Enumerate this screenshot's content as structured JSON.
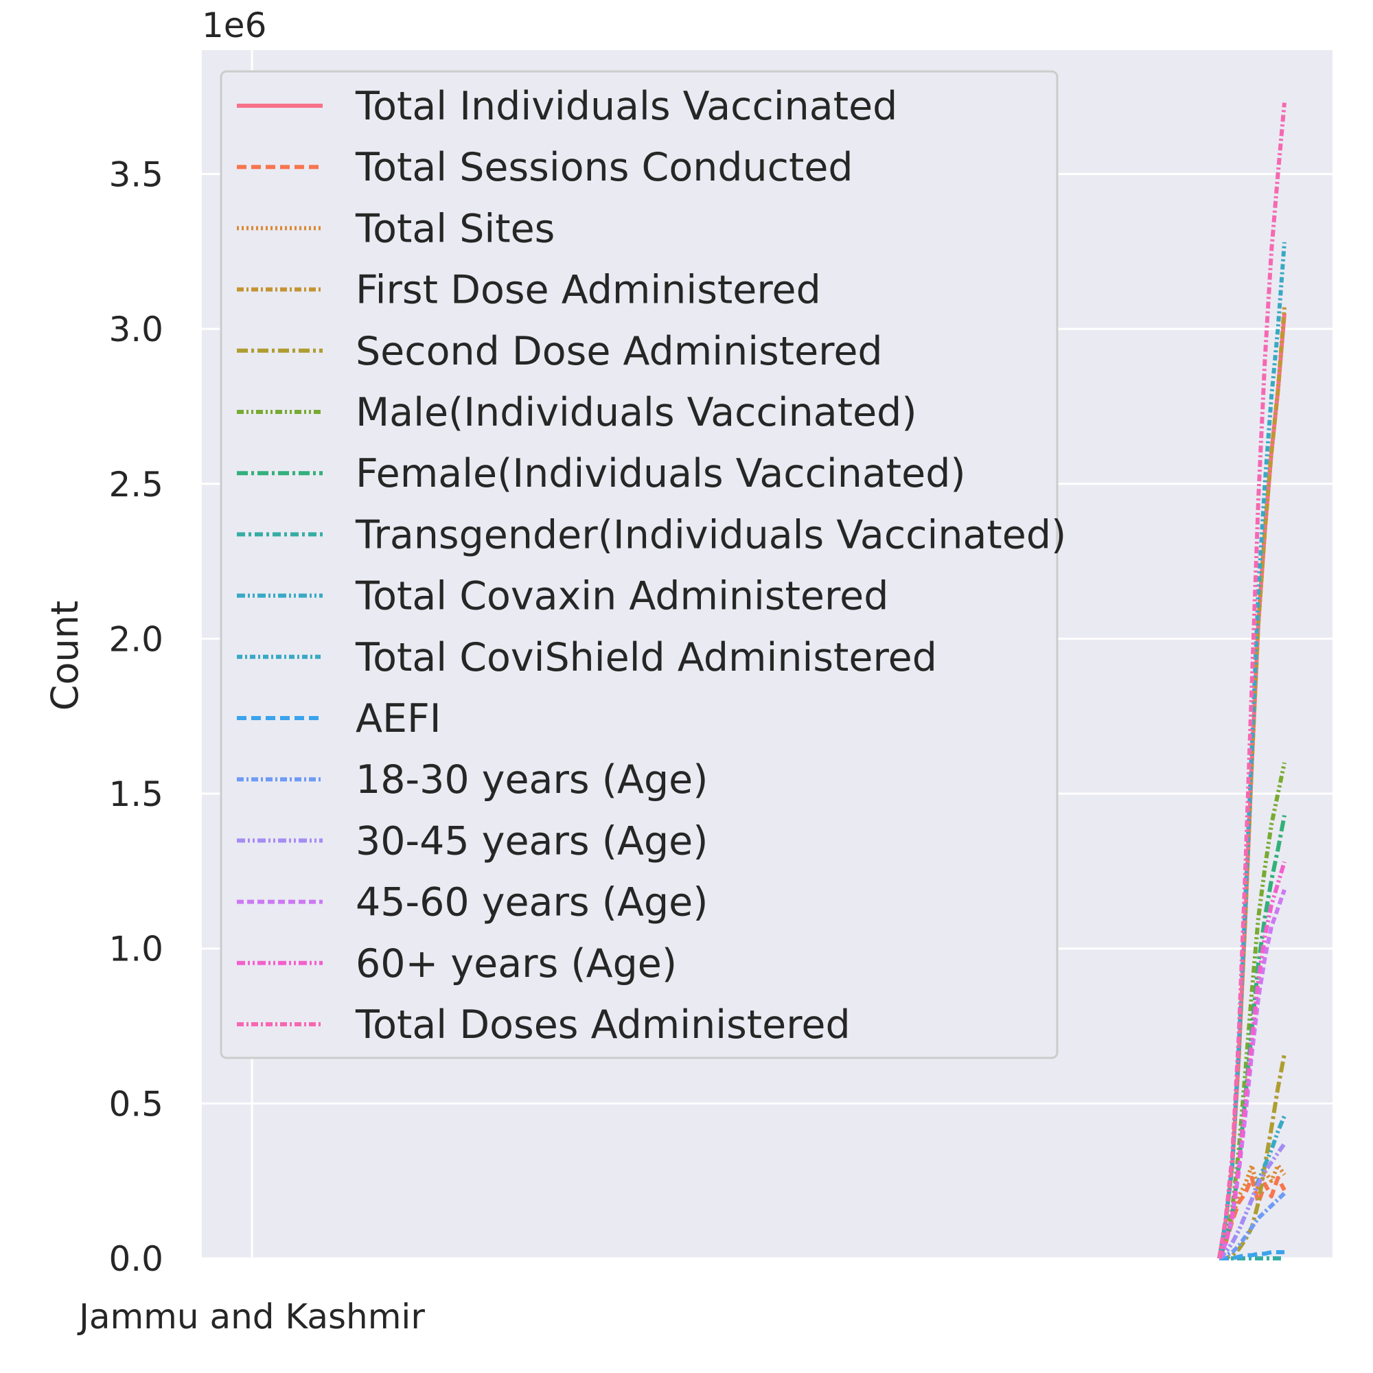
{
  "chart_data": {
    "type": "line",
    "title": "",
    "xlabel": "",
    "ylabel": "Count",
    "offset_label": "1e6",
    "x_category_label": "Jammu and Kashmir",
    "ylim": [
      0,
      3.9
    ],
    "y_ticks": [
      "0.0",
      "0.5",
      "1.0",
      "1.5",
      "2.0",
      "2.5",
      "3.0",
      "3.5"
    ],
    "grid": true,
    "legend_position": "upper-left",
    "x": [
      0.0,
      0.1,
      0.2,
      0.3,
      0.4,
      0.5,
      0.6,
      0.7,
      0.8,
      0.9,
      1.0
    ],
    "series": [
      {
        "name": "Total Individuals Vaccinated",
        "color": "#f77189",
        "dash": "",
        "values": [
          0.0,
          0.12,
          0.3,
          0.65,
          1.1,
          1.6,
          2.05,
          2.35,
          2.6,
          2.8,
          3.05
        ]
      },
      {
        "name": "Total Sessions Conducted",
        "color": "#f7754f",
        "dash": "14,7",
        "values": [
          0.0,
          0.05,
          0.12,
          0.18,
          0.21,
          0.26,
          0.18,
          0.24,
          0.2,
          0.26,
          0.22
        ]
      },
      {
        "name": "Total Sites",
        "color": "#dc8932",
        "dash": "3,4",
        "values": [
          0.0,
          0.06,
          0.13,
          0.2,
          0.24,
          0.3,
          0.22,
          0.28,
          0.25,
          0.3,
          0.27
        ]
      },
      {
        "name": "First Dose Administered",
        "color": "#c39532",
        "dash": "10,4,3,4",
        "values": [
          0.0,
          0.12,
          0.31,
          0.66,
          1.1,
          1.6,
          2.05,
          2.35,
          2.6,
          2.8,
          3.07
        ]
      },
      {
        "name": "Second Dose Administered",
        "color": "#ae9d31",
        "dash": "16,5,4,5",
        "values": [
          0.0,
          0.0,
          0.01,
          0.03,
          0.06,
          0.1,
          0.18,
          0.3,
          0.42,
          0.55,
          0.66
        ]
      },
      {
        "name": "Male(Individuals Vaccinated)",
        "color": "#77ab31",
        "dash": "10,4,3,4,3,4",
        "values": [
          0.0,
          0.06,
          0.16,
          0.35,
          0.6,
          0.86,
          1.1,
          1.26,
          1.4,
          1.5,
          1.6
        ]
      },
      {
        "name": "Female(Individuals Vaccinated)",
        "color": "#33b07a",
        "dash": "16,5,4,5",
        "values": [
          0.0,
          0.05,
          0.14,
          0.3,
          0.52,
          0.74,
          0.95,
          1.1,
          1.22,
          1.32,
          1.43
        ]
      },
      {
        "name": "Transgender(Individuals Vaccinated)",
        "color": "#36ada4",
        "dash": "12,5,4,5",
        "values": [
          0.0,
          0.0,
          0.0,
          0.0,
          0.0,
          0.0,
          0.0,
          0.0,
          0.0,
          0.0,
          0.0
        ]
      },
      {
        "name": "Total Covaxin Administered",
        "color": "#38a9c5",
        "dash": "12,4,3,4,3,4",
        "values": [
          0.0,
          0.02,
          0.05,
          0.09,
          0.14,
          0.19,
          0.25,
          0.3,
          0.35,
          0.41,
          0.46
        ]
      },
      {
        "name": "Total CoviShield Administered",
        "color": "#38a9c5",
        "dash": "8,4,3,4",
        "values": [
          0.0,
          0.12,
          0.3,
          0.68,
          1.15,
          1.65,
          2.15,
          2.5,
          2.78,
          3.0,
          3.28
        ]
      },
      {
        "name": "AEFI",
        "color": "#3ba3ec",
        "dash": "14,7",
        "values": [
          0.0,
          0.0,
          0.0,
          0.005,
          0.01,
          0.01,
          0.015,
          0.015,
          0.02,
          0.02,
          0.02
        ]
      },
      {
        "name": "18-30 years (Age)",
        "color": "#6e9bf4",
        "dash": "10,4,3,4",
        "values": [
          0.0,
          0.01,
          0.02,
          0.04,
          0.07,
          0.1,
          0.13,
          0.15,
          0.17,
          0.19,
          0.21
        ]
      },
      {
        "name": "30-45 years (Age)",
        "color": "#a48cf4",
        "dash": "12,4,3,4,3,4",
        "values": [
          0.0,
          0.02,
          0.05,
          0.09,
          0.14,
          0.19,
          0.24,
          0.28,
          0.31,
          0.34,
          0.37
        ]
      },
      {
        "name": "45-60 years (Age)",
        "color": "#cc79f4",
        "dash": "10,5",
        "values": [
          0.0,
          0.05,
          0.13,
          0.28,
          0.46,
          0.66,
          0.84,
          0.97,
          1.07,
          1.13,
          1.19
        ]
      },
      {
        "name": "60+ years (Age)",
        "color": "#f45fcc",
        "dash": "12,4,3,4,3,4",
        "values": [
          0.0,
          0.05,
          0.14,
          0.3,
          0.5,
          0.7,
          0.9,
          1.04,
          1.14,
          1.21,
          1.28
        ]
      },
      {
        "name": "Total Doses Administered",
        "color": "#f668b2",
        "dash": "10,4,3,4",
        "values": [
          0.0,
          0.13,
          0.33,
          0.72,
          1.25,
          1.85,
          2.45,
          2.9,
          3.25,
          3.5,
          3.73
        ]
      }
    ]
  }
}
